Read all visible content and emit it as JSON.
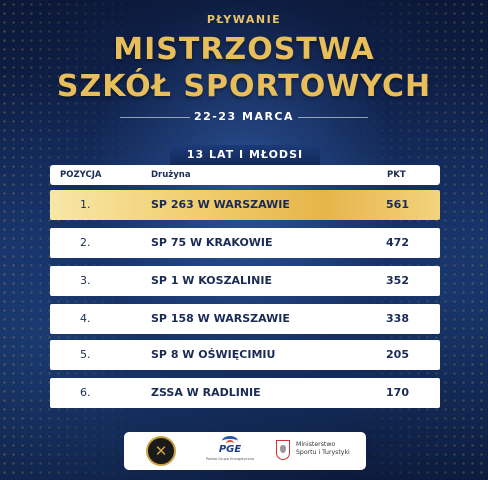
{
  "header": {
    "discipline": "PŁYWANIE",
    "title_line1": "MISTRZOSTWA",
    "title_line2": "SZKÓŁ SPORTOWYCH",
    "dates": "22-23 MARCA"
  },
  "category": "13 LAT I MŁODSI",
  "table": {
    "columns": {
      "position": "POZYCJA",
      "team": "Drużyna",
      "points": "PKT"
    },
    "rows": [
      {
        "position": "1.",
        "team": "SP 263 W WARSZAWIE",
        "points": "561"
      },
      {
        "position": "2.",
        "team": "SP 75 W KRAKOWIE",
        "points": "472"
      },
      {
        "position": "3.",
        "team": "SP 1 W KOSZALINIE",
        "points": "352"
      },
      {
        "position": "4.",
        "team": "SP 158 W WARSZAWIE",
        "points": "338"
      },
      {
        "position": "5.",
        "team": "SP 8 W OŚWIĘCIMIU",
        "points": "205"
      },
      {
        "position": "6.",
        "team": "ZSSA W RADLINIE",
        "points": "170"
      }
    ]
  },
  "footer": {
    "logos": [
      "szs-logo",
      "pge-logo",
      "ministry-logo"
    ],
    "pge_text": "PGE",
    "pge_sub": "Polska Grupa Energetyczna",
    "ministry_line1": "Ministerstwo",
    "ministry_line2": "Sportu i Turystyki"
  },
  "colors": {
    "background": "#0c1a3c",
    "gold": "#e8be5a",
    "navy_text": "#1a2b55"
  }
}
